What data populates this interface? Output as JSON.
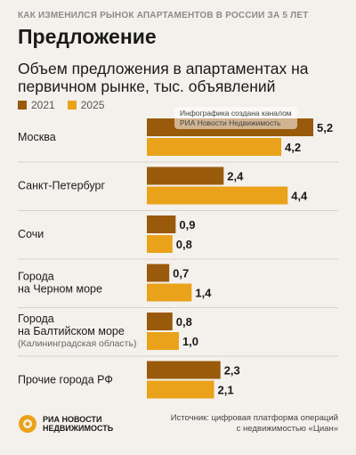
{
  "header": {
    "kicker": "КАК ИЗМЕНИЛСЯ РЫНОК АПАРТАМЕНТОВ В РОССИИ ЗА 5 ЛЕТ",
    "heading": "Предложение"
  },
  "colors": {
    "series_2021": "#9a5a0c",
    "series_2025": "#e9a21a"
  },
  "watermark": {
    "line1": "Инфографика создана каналом",
    "line2": "РИА Новости Недвижимость"
  },
  "chart_data": {
    "type": "bar",
    "orientation": "horizontal",
    "title": "Объем предложения в апартаментах на первичном рынке, тыс. объявлений",
    "categories": [
      [
        "Москва"
      ],
      [
        "Санкт-Петербург"
      ],
      [
        "Сочи"
      ],
      [
        "Города",
        "на Черном море"
      ],
      [
        "Города",
        "на Балтийском море"
      ],
      [
        "Прочие города РФ"
      ]
    ],
    "category_notes": [
      "",
      "",
      "",
      "",
      "(Калининградская область)",
      ""
    ],
    "series": [
      {
        "name": "2021",
        "values": [
          5.2,
          2.4,
          0.9,
          0.7,
          0.8,
          2.3
        ],
        "labels": [
          "5,2",
          "2,4",
          "0,9",
          "0,7",
          "0,8",
          "2,3"
        ]
      },
      {
        "name": "2025",
        "values": [
          4.2,
          4.4,
          0.8,
          1.4,
          1.0,
          2.1
        ],
        "labels": [
          "4,2",
          "4,4",
          "0,8",
          "1,4",
          "1,0",
          "2,1"
        ]
      }
    ],
    "xlim": [
      0,
      5.2
    ],
    "grid": false,
    "legend_position": "top-left"
  },
  "footer": {
    "logo_line1": "РИА НОВОСТИ",
    "logo_line2": "НЕДВИЖИМОСТЬ",
    "source_line1": "Источник: цифровая платформа операций",
    "source_line2": "с недвижимостью «Циан»"
  }
}
